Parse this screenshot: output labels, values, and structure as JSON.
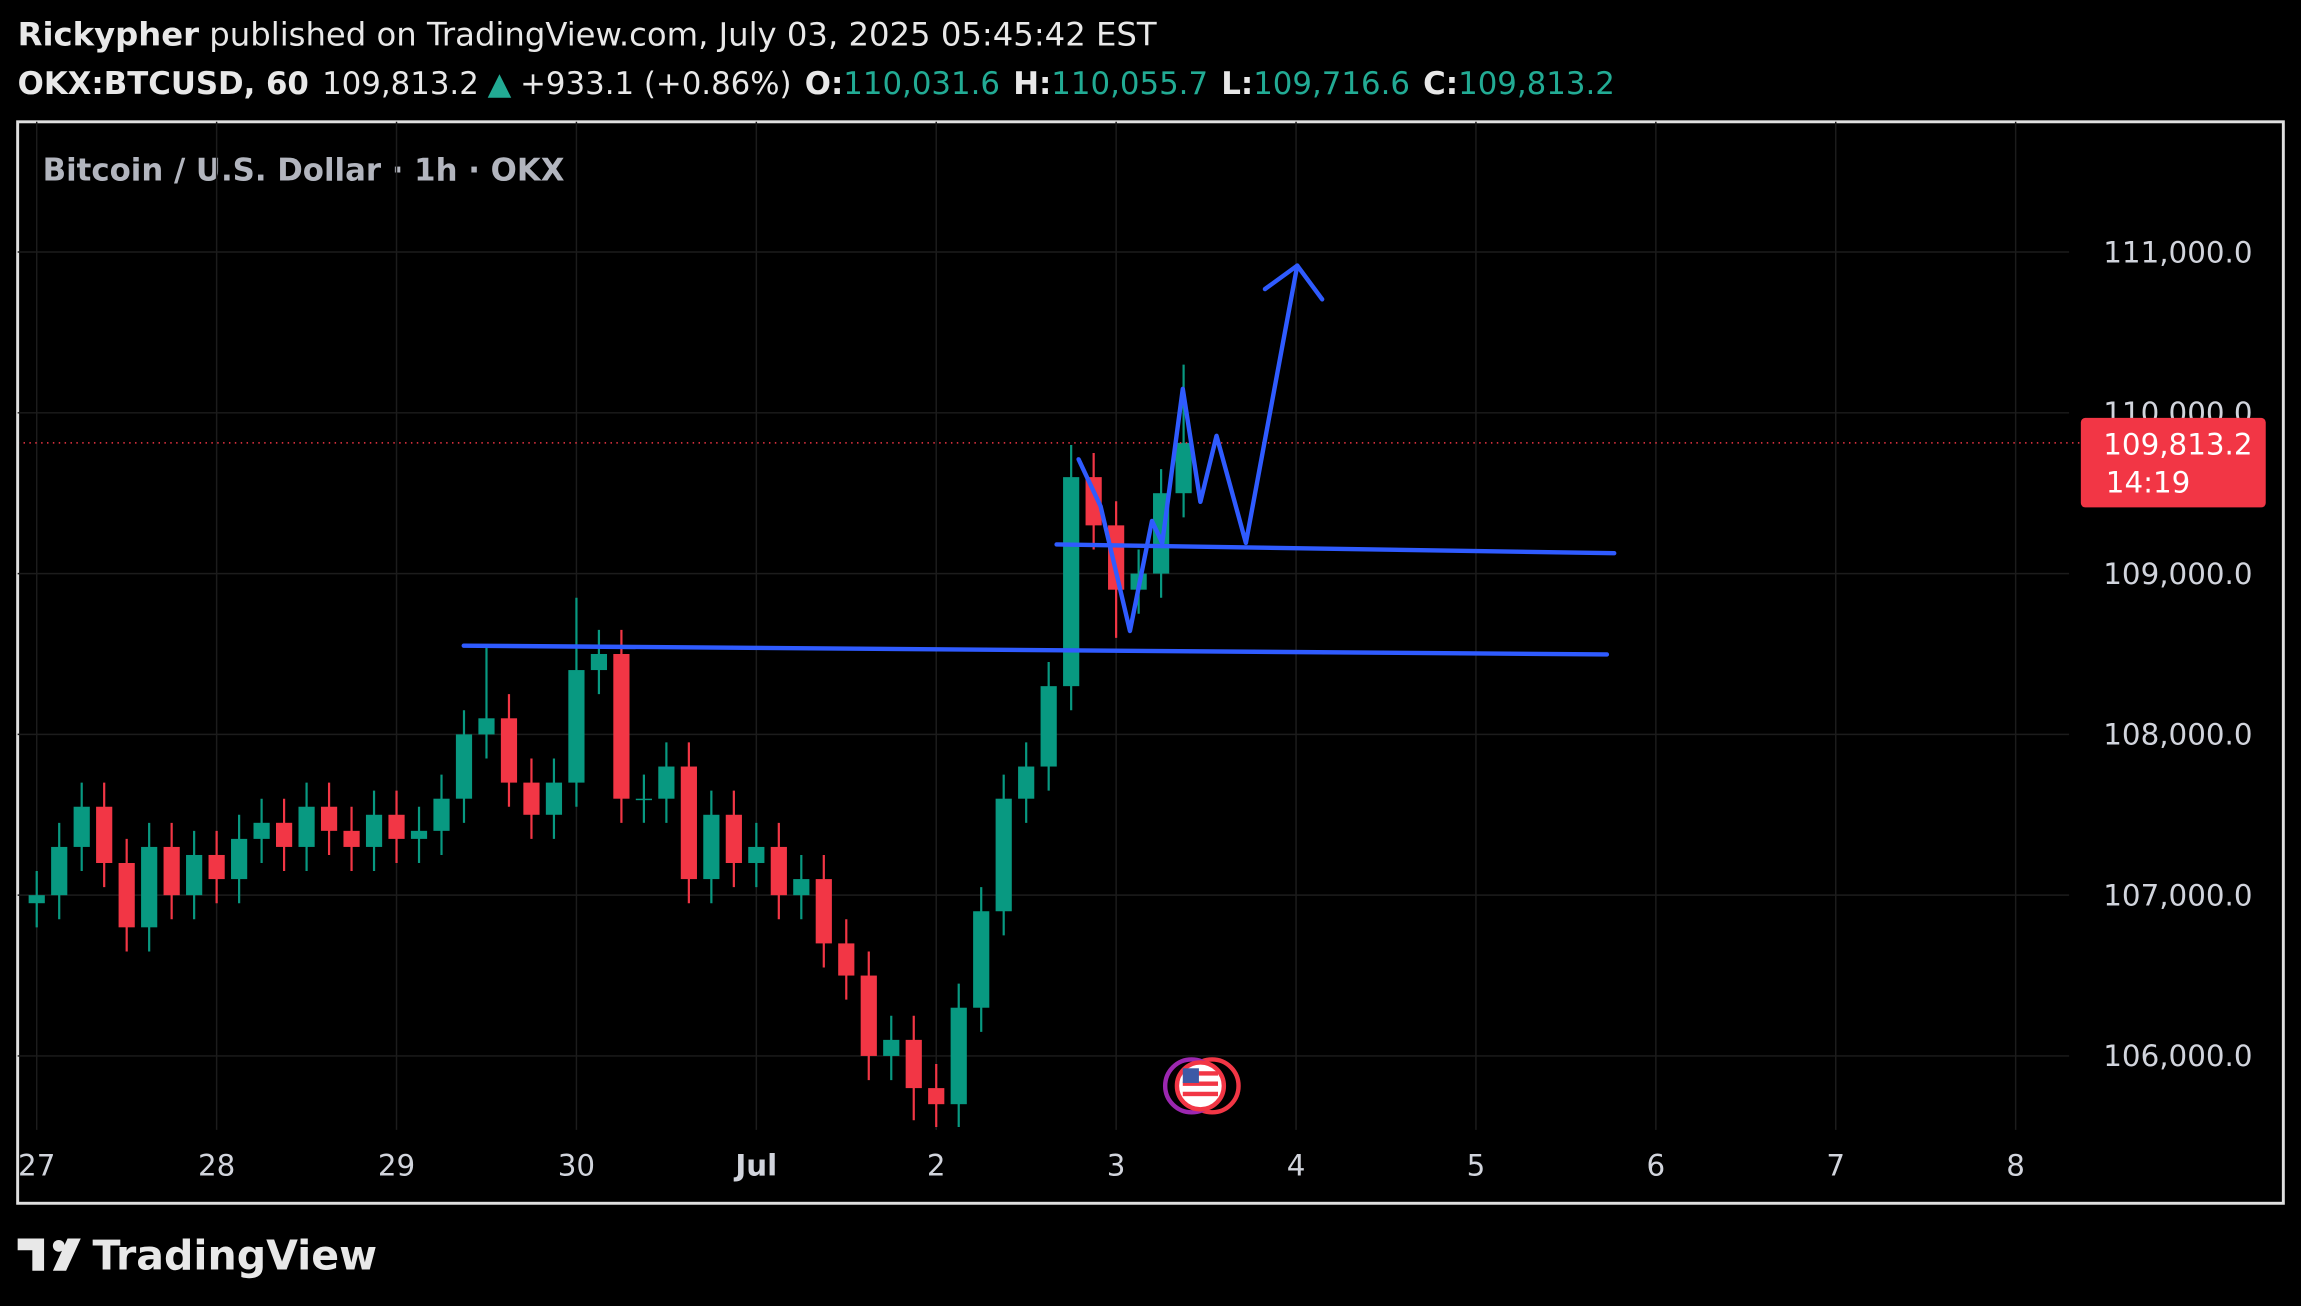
{
  "header": {
    "author": "Rickypher",
    "published": "published on TradingView.com, July 03, 2025 05:45:42 EST",
    "symbol": "OKX:BTCUSD, 60",
    "price": "109,813.2",
    "arrow": "▲",
    "change": "+933.1 (+0.86%)",
    "ohlc": [
      {
        "key": "O:",
        "value": "110,031.6"
      },
      {
        "key": "H:",
        "value": "110,055.7"
      },
      {
        "key": "L:",
        "value": "109,716.6"
      },
      {
        "key": "C:",
        "value": "109,813.2"
      }
    ]
  },
  "chart_data": {
    "type": "candlestick",
    "title": "Bitcoin / U.S. Dollar · 1h · OKX",
    "x": [
      27,
      27.125,
      27.25,
      27.375,
      27.5,
      27.625,
      27.75,
      27.875,
      28,
      28.125,
      28.25,
      28.375,
      28.5,
      28.625,
      28.75,
      28.875,
      29,
      29.125,
      29.25,
      29.375,
      29.5,
      29.625,
      29.75,
      29.875,
      30,
      30.125,
      30.25,
      30.375,
      30.5,
      30.625,
      30.75,
      30.875,
      31,
      31.125,
      31.25,
      31.375,
      31.5,
      31.625,
      31.75,
      31.875,
      32,
      32.125,
      32.25,
      32.375,
      32.5,
      32.625,
      32.75,
      32.875,
      33,
      33.125,
      33.25,
      33.375
    ],
    "open": [
      106950,
      107000,
      107300,
      107550,
      107200,
      106800,
      107300,
      107000,
      107250,
      107100,
      107350,
      107450,
      107300,
      107550,
      107400,
      107300,
      107500,
      107350,
      107400,
      107600,
      108000,
      108100,
      107700,
      107500,
      107700,
      108400,
      108500,
      107600,
      107600,
      107800,
      107100,
      107500,
      107200,
      107300,
      107000,
      107100,
      106700,
      106500,
      106000,
      106100,
      105800,
      105700,
      106300,
      106900,
      107600,
      107800,
      108300,
      109600,
      109300,
      108900,
      109000,
      109500
    ],
    "high": [
      107150,
      107450,
      107700,
      107700,
      107350,
      107450,
      107450,
      107400,
      107400,
      107500,
      107600,
      107600,
      107700,
      107700,
      107550,
      107650,
      107650,
      107550,
      107750,
      108150,
      108550,
      108250,
      107850,
      107850,
      108850,
      108650,
      108650,
      107750,
      107950,
      107950,
      107650,
      107650,
      107450,
      107450,
      107250,
      107250,
      106850,
      106650,
      106250,
      106250,
      105950,
      106450,
      107050,
      107750,
      107950,
      108450,
      109800,
      109750,
      109450,
      109150,
      109650,
      110300
    ],
    "low": [
      106800,
      106850,
      107150,
      107050,
      106650,
      106650,
      106850,
      106850,
      106950,
      106950,
      107200,
      107150,
      107150,
      107250,
      107150,
      107150,
      107200,
      107200,
      107250,
      107450,
      107850,
      107550,
      107350,
      107350,
      107550,
      108250,
      107450,
      107450,
      107450,
      106950,
      106950,
      107050,
      107050,
      106850,
      106850,
      106550,
      106350,
      105850,
      105850,
      105600,
      105550,
      105550,
      106150,
      106750,
      107450,
      107650,
      108150,
      109150,
      108600,
      108750,
      108850,
      109350
    ],
    "close": [
      107000,
      107300,
      107550,
      107200,
      106800,
      107300,
      107000,
      107250,
      107100,
      107350,
      107450,
      107300,
      107550,
      107400,
      107300,
      107500,
      107350,
      107400,
      107600,
      108000,
      108100,
      107700,
      107500,
      107700,
      108400,
      108500,
      107600,
      107600,
      107800,
      107100,
      107500,
      107200,
      107300,
      107000,
      107100,
      106700,
      106500,
      106000,
      106100,
      105800,
      105700,
      106300,
      106900,
      107600,
      107800,
      108300,
      109600,
      109300,
      108900,
      109000,
      109500,
      109813.2
    ],
    "up_color": "#089981",
    "down_color": "#f23645",
    "xlim": [
      26.894,
      39.488
    ],
    "xticks": [
      27,
      28,
      29,
      30,
      {
        "value": 31,
        "label": "Jul"
      },
      {
        "value": 32,
        "label": "2"
      },
      {
        "value": 33,
        "label": "3"
      },
      {
        "value": 34,
        "label": "4"
      },
      {
        "value": 35,
        "label": "5"
      },
      {
        "value": 36,
        "label": "6"
      },
      {
        "value": 37,
        "label": "7"
      },
      {
        "value": 38,
        "label": "8"
      }
    ],
    "ylim": [
      105540,
      111810
    ],
    "yticks": [
      {
        "value": 106000,
        "label": "106,000.0"
      },
      {
        "value": 107000,
        "label": "107,000.0"
      },
      {
        "value": 108000,
        "label": "108,000.0"
      },
      {
        "value": 109000,
        "label": "109,000.0"
      },
      {
        "value": 110000,
        "label": "110,000.0"
      },
      {
        "value": 111000,
        "label": "111,000.0"
      }
    ],
    "grid": true,
    "last_price_label": "109,813.2",
    "countdown": "14:19"
  },
  "footer": {
    "brand": "TradingView"
  }
}
